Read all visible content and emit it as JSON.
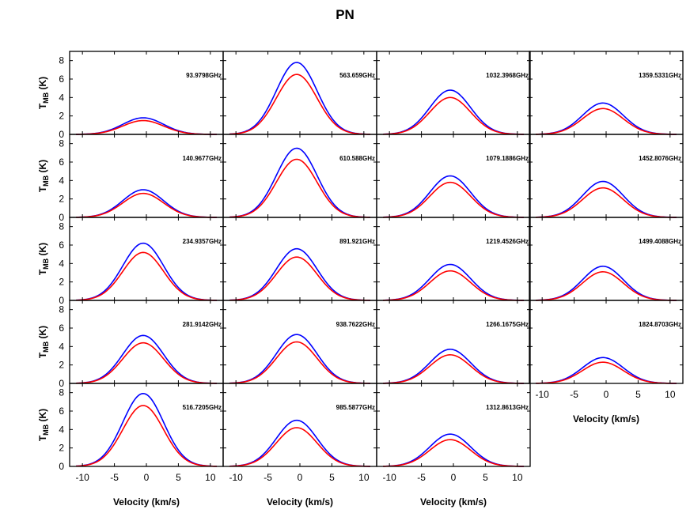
{
  "chart_data": {
    "type": "line",
    "title": "PN",
    "xlabel": "Velocity (km/s)",
    "ylabel": "T_MB (K)",
    "ylabel_main": "T",
    "ylabel_sub": "MB",
    "ylabel_rest": " (K)",
    "xlim": [
      -12,
      12
    ],
    "ylim": [
      0,
      9
    ],
    "xticks": [
      -10,
      -5,
      0,
      5,
      10
    ],
    "yticks": [
      0,
      2,
      4,
      6,
      8
    ],
    "series_colors": {
      "blue": "#0000ff",
      "red": "#ff0000"
    },
    "line_center_kms": -0.5,
    "line_fwhm_kms": 7.5,
    "panels": [
      {
        "col": 0,
        "row": 0,
        "label": "93.9798GHz",
        "peak_blue": 1.8,
        "peak_red": 1.5
      },
      {
        "col": 0,
        "row": 1,
        "label": "140.9677GHz",
        "peak_blue": 3.0,
        "peak_red": 2.6
      },
      {
        "col": 0,
        "row": 2,
        "label": "234.9357GHz",
        "peak_blue": 6.2,
        "peak_red": 5.2
      },
      {
        "col": 0,
        "row": 3,
        "label": "281.9142GHz",
        "peak_blue": 5.2,
        "peak_red": 4.4
      },
      {
        "col": 0,
        "row": 4,
        "label": "516.7205GHz",
        "peak_blue": 7.9,
        "peak_red": 6.6
      },
      {
        "col": 1,
        "row": 0,
        "label": "563.659GHz",
        "peak_blue": 7.8,
        "peak_red": 6.5
      },
      {
        "col": 1,
        "row": 1,
        "label": "610.588GHz",
        "peak_blue": 7.5,
        "peak_red": 6.3
      },
      {
        "col": 1,
        "row": 2,
        "label": "891.921GHz",
        "peak_blue": 5.6,
        "peak_red": 4.7
      },
      {
        "col": 1,
        "row": 3,
        "label": "938.7622GHz",
        "peak_blue": 5.3,
        "peak_red": 4.5
      },
      {
        "col": 1,
        "row": 4,
        "label": "985.5877GHz",
        "peak_blue": 5.0,
        "peak_red": 4.2
      },
      {
        "col": 2,
        "row": 0,
        "label": "1032.3968GHz",
        "peak_blue": 4.8,
        "peak_red": 4.0
      },
      {
        "col": 2,
        "row": 1,
        "label": "1079.1886GHz",
        "peak_blue": 4.5,
        "peak_red": 3.8
      },
      {
        "col": 2,
        "row": 2,
        "label": "1219.4526GHz",
        "peak_blue": 3.9,
        "peak_red": 3.2
      },
      {
        "col": 2,
        "row": 3,
        "label": "1266.1675GHz",
        "peak_blue": 3.7,
        "peak_red": 3.1
      },
      {
        "col": 2,
        "row": 4,
        "label": "1312.8613GHz",
        "peak_blue": 3.5,
        "peak_red": 2.9
      },
      {
        "col": 3,
        "row": 0,
        "label": "1359.5331GHz",
        "peak_blue": 3.4,
        "peak_red": 2.8
      },
      {
        "col": 3,
        "row": 1,
        "label": "1452.8076GHz",
        "peak_blue": 3.9,
        "peak_red": 3.2
      },
      {
        "col": 3,
        "row": 2,
        "label": "1499.4088GHz",
        "peak_blue": 3.7,
        "peak_red": 3.1
      },
      {
        "col": 3,
        "row": 3,
        "label": "1824.8703GHz",
        "peak_blue": 2.8,
        "peak_red": 2.3
      }
    ]
  }
}
